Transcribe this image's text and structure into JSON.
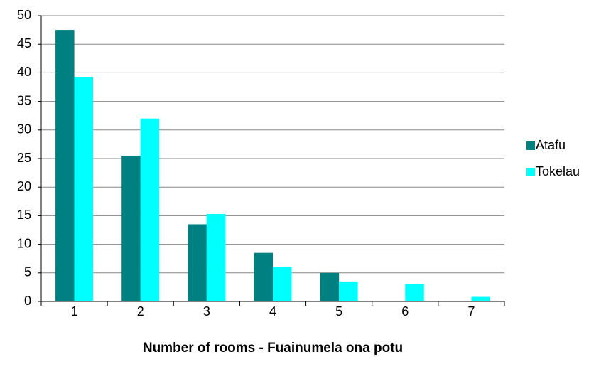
{
  "chart_data": {
    "type": "bar",
    "x_label": "Number of rooms - Fuainumela ona potu",
    "categories": [
      "1",
      "2",
      "3",
      "4",
      "5",
      "6",
      "7"
    ],
    "series": [
      {
        "name": "Atafu",
        "color": "#008080",
        "values": [
          47.5,
          25.5,
          13.5,
          8.5,
          5,
          0,
          0
        ]
      },
      {
        "name": "Tokelau",
        "color": "#00ffff",
        "values": [
          39.3,
          32,
          15.3,
          6,
          3.5,
          3,
          0.8
        ]
      }
    ],
    "ylim": [
      0,
      50
    ],
    "yticks": [
      0,
      5,
      10,
      15,
      20,
      25,
      30,
      35,
      40,
      45,
      50
    ],
    "grid": true,
    "legend": "right"
  }
}
